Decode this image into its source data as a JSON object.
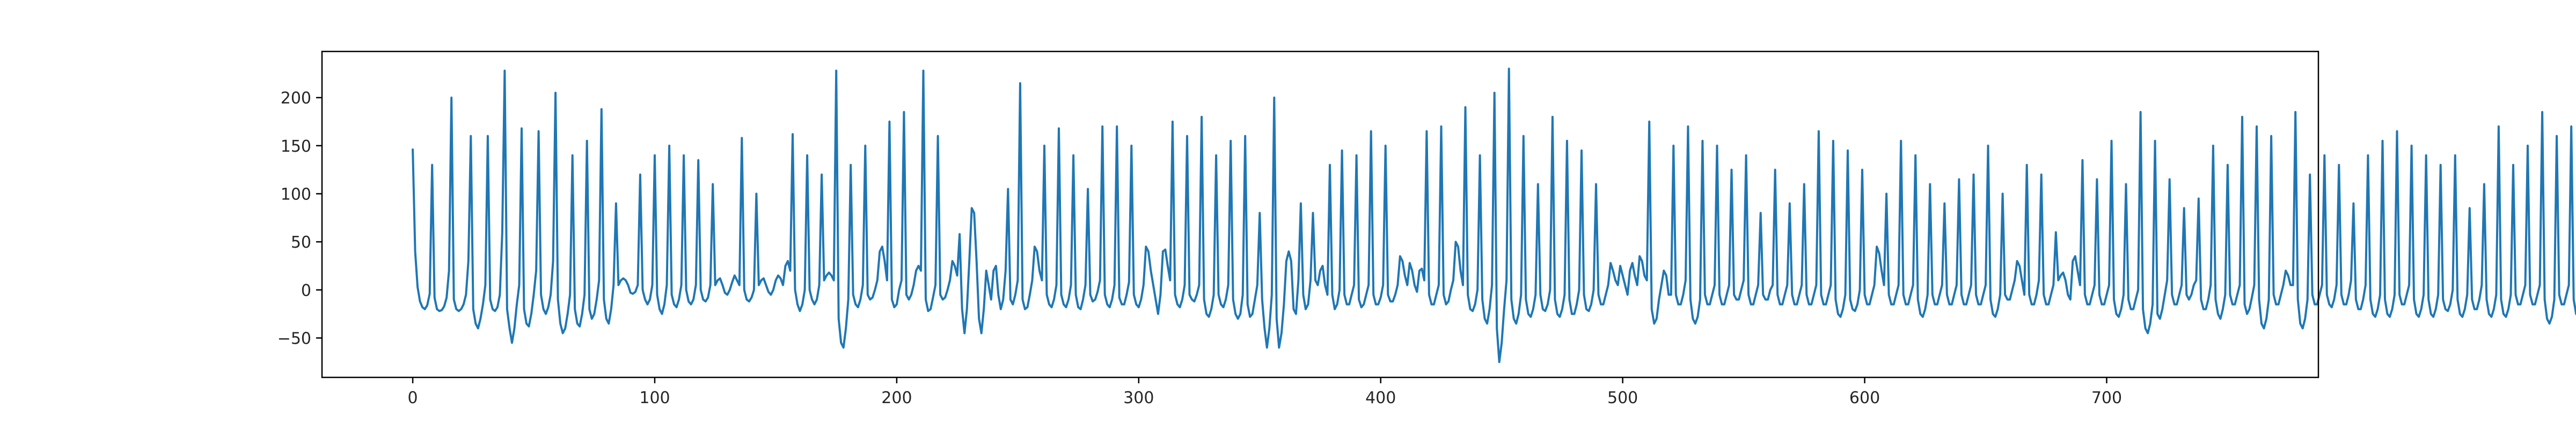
{
  "chart_data": {
    "type": "line",
    "title": "",
    "xlabel": "",
    "ylabel": "",
    "xlim": [
      -37.5,
      787.5
    ],
    "ylim": [
      -91,
      248
    ],
    "xticks": [
      0,
      100,
      200,
      300,
      400,
      500,
      600,
      700
    ],
    "yticks": [
      -50,
      0,
      50,
      100,
      150,
      200
    ],
    "grid": false,
    "legend": "none",
    "series": [
      {
        "color": "#1f77b4",
        "x_start": 0,
        "x_step": 1,
        "values": [
          146,
          40,
          3,
          -12,
          -18,
          -20,
          -16,
          -4,
          130,
          -8,
          -20,
          -22,
          -21,
          -17,
          -8,
          20,
          200,
          -10,
          -20,
          -22,
          -20,
          -15,
          -5,
          30,
          160,
          -20,
          -35,
          -40,
          -30,
          -15,
          5,
          160,
          -10,
          -20,
          -22,
          -18,
          -5,
          60,
          228,
          -20,
          -40,
          -55,
          -40,
          -15,
          5,
          168,
          -20,
          -35,
          -38,
          -25,
          -5,
          20,
          165,
          -5,
          -20,
          -25,
          -18,
          -5,
          30,
          205,
          -10,
          -35,
          -45,
          -40,
          -25,
          -5,
          140,
          -20,
          -35,
          -38,
          -25,
          -5,
          155,
          -20,
          -30,
          -25,
          -10,
          10,
          188,
          -10,
          -30,
          -35,
          -20,
          5,
          90,
          5,
          10,
          12,
          10,
          5,
          -3,
          -4,
          -2,
          5,
          120,
          0,
          -10,
          -15,
          -10,
          5,
          140,
          -5,
          -20,
          -25,
          -15,
          5,
          150,
          -5,
          -15,
          -18,
          -10,
          5,
          140,
          0,
          -12,
          -15,
          -10,
          5,
          135,
          0,
          -10,
          -12,
          -8,
          5,
          110,
          5,
          10,
          12,
          5,
          -3,
          -5,
          0,
          8,
          15,
          10,
          5,
          158,
          0,
          -10,
          -12,
          -8,
          0,
          100,
          5,
          10,
          12,
          5,
          -2,
          -5,
          0,
          10,
          15,
          12,
          5,
          25,
          30,
          20,
          162,
          0,
          -15,
          -22,
          -15,
          0,
          140,
          0,
          -10,
          -15,
          -10,
          5,
          120,
          10,
          15,
          18,
          15,
          10,
          228,
          -30,
          -55,
          -60,
          -40,
          -10,
          130,
          -5,
          -15,
          -18,
          -10,
          5,
          150,
          -5,
          -10,
          -8,
          0,
          10,
          40,
          45,
          30,
          10,
          175,
          -10,
          -18,
          -15,
          0,
          10,
          185,
          -5,
          -10,
          -5,
          5,
          20,
          25,
          20,
          228,
          -10,
          -22,
          -20,
          -8,
          5,
          160,
          -5,
          -10,
          -8,
          0,
          10,
          30,
          25,
          15,
          58,
          -20,
          -45,
          -20,
          30,
          85,
          80,
          30,
          -30,
          -45,
          -20,
          20,
          5,
          -10,
          20,
          25,
          -5,
          -20,
          -10,
          20,
          105,
          -10,
          -15,
          -5,
          10,
          215,
          -10,
          -20,
          -18,
          -5,
          10,
          45,
          40,
          20,
          10,
          150,
          -5,
          -15,
          -18,
          -10,
          5,
          168,
          -5,
          -15,
          -18,
          -10,
          5,
          140,
          -5,
          -18,
          -20,
          -10,
          5,
          105,
          -5,
          -12,
          -10,
          -2,
          10,
          170,
          -5,
          -15,
          -18,
          -10,
          5,
          170,
          -8,
          -15,
          -15,
          -5,
          8,
          150,
          -5,
          -15,
          -18,
          -10,
          5,
          45,
          40,
          20,
          5,
          -10,
          -25,
          -5,
          40,
          42,
          25,
          10,
          175,
          -5,
          -15,
          -18,
          -10,
          5,
          160,
          -5,
          -10,
          -12,
          -5,
          5,
          180,
          -10,
          -25,
          -28,
          -20,
          -5,
          140,
          -5,
          -15,
          -18,
          -10,
          5,
          155,
          -10,
          -25,
          -30,
          -25,
          -5,
          160,
          -15,
          -28,
          -25,
          -10,
          5,
          80,
          -10,
          -40,
          -60,
          -40,
          -5,
          200,
          -30,
          -60,
          -45,
          -15,
          30,
          40,
          30,
          -20,
          -25,
          10,
          90,
          -5,
          -20,
          -15,
          10,
          80,
          10,
          5,
          20,
          25,
          5,
          -5,
          130,
          -5,
          -20,
          -15,
          0,
          145,
          -5,
          -15,
          -15,
          -5,
          5,
          140,
          -10,
          -18,
          -15,
          -5,
          5,
          165,
          -5,
          -15,
          -15,
          -8,
          5,
          150,
          -5,
          -12,
          -12,
          -5,
          5,
          35,
          30,
          15,
          5,
          28,
          20,
          5,
          -2,
          20,
          22,
          10,
          165,
          -5,
          -15,
          -15,
          -5,
          5,
          170,
          -5,
          -15,
          -12,
          0,
          10,
          50,
          45,
          20,
          5,
          190,
          -5,
          -20,
          -22,
          -15,
          0,
          140,
          -10,
          -30,
          -35,
          -20,
          5,
          205,
          -40,
          -75,
          -55,
          -20,
          10,
          230,
          -10,
          -30,
          -35,
          -25,
          -5,
          160,
          -10,
          -25,
          -28,
          -20,
          -5,
          110,
          -5,
          -20,
          -22,
          -15,
          0,
          180,
          -10,
          -25,
          -28,
          -20,
          -5,
          155,
          -10,
          -25,
          -25,
          -15,
          0,
          145,
          -5,
          -20,
          -22,
          -15,
          0,
          110,
          -5,
          -15,
          -15,
          -5,
          5,
          28,
          20,
          10,
          5,
          25,
          15,
          5,
          -5,
          20,
          28,
          15,
          5,
          35,
          30,
          15,
          10,
          175,
          -20,
          -35,
          -30,
          -10,
          5,
          20,
          15,
          -5,
          -5,
          150,
          -5,
          -15,
          -15,
          -5,
          10,
          170,
          -10,
          -30,
          -35,
          -28,
          -10,
          155,
          -5,
          -15,
          -15,
          -5,
          5,
          150,
          -5,
          -15,
          -15,
          -5,
          5,
          125,
          -5,
          -10,
          -10,
          0,
          10,
          140,
          -5,
          -15,
          -15,
          -5,
          5,
          80,
          -5,
          -10,
          -10,
          0,
          5,
          125,
          -5,
          -15,
          -15,
          -5,
          5,
          90,
          -5,
          -15,
          -15,
          -5,
          5,
          110,
          -5,
          -15,
          -15,
          -5,
          5,
          165,
          -5,
          -15,
          -15,
          -5,
          5,
          155,
          -10,
          -25,
          -28,
          -20,
          -5,
          145,
          -10,
          -20,
          -22,
          -15,
          0,
          125,
          -5,
          -15,
          -15,
          -5,
          5,
          45,
          38,
          20,
          5,
          100,
          -5,
          -15,
          -15,
          -5,
          5,
          155,
          -5,
          -15,
          -15,
          -5,
          5,
          140,
          -10,
          -25,
          -28,
          -20,
          -5,
          110,
          -5,
          -15,
          -15,
          -5,
          5,
          90,
          -5,
          -15,
          -15,
          -5,
          5,
          115,
          -5,
          -15,
          -15,
          -5,
          5,
          120,
          -5,
          -15,
          -15,
          -5,
          5,
          150,
          -10,
          -25,
          -28,
          -20,
          -5,
          100,
          -5,
          -10,
          -10,
          0,
          10,
          30,
          25,
          10,
          -5,
          130,
          -5,
          -15,
          -15,
          -5,
          10,
          120,
          -5,
          -15,
          -15,
          -5,
          5,
          60,
          10,
          15,
          18,
          10,
          -5,
          -10,
          30,
          35,
          20,
          5,
          135,
          -5,
          -15,
          -15,
          -5,
          5,
          115,
          -5,
          -15,
          -15,
          -5,
          5,
          155,
          -10,
          -25,
          -28,
          -20,
          -5,
          110,
          -10,
          -20,
          -20,
          -10,
          0,
          185,
          -20,
          -40,
          -45,
          -35,
          -15,
          155,
          -25,
          -30,
          -20,
          -5,
          10,
          115,
          -5,
          -15,
          -15,
          -5,
          5,
          85,
          -5,
          -10,
          -5,
          5,
          10,
          95,
          -10,
          -20,
          -20,
          -10,
          5,
          150,
          -10,
          -25,
          -30,
          -20,
          -5,
          130,
          -5,
          -15,
          -15,
          -5,
          5,
          180,
          -15,
          -25,
          -20,
          -8,
          5,
          170,
          -10,
          -35,
          -40,
          -30,
          -10,
          160,
          -5,
          -15,
          -15,
          -5,
          5,
          20,
          15,
          5,
          5,
          185,
          -10,
          -35,
          -40,
          -30,
          -10,
          120,
          -5,
          -15,
          -15,
          -5,
          5,
          140,
          -5,
          -15,
          -18,
          -10,
          5,
          130,
          -5,
          -15,
          -15,
          -5,
          10,
          90,
          -10,
          -20,
          -20,
          -10,
          5,
          140,
          -10,
          -25,
          -28,
          -20,
          -5,
          155,
          -10,
          -25,
          -28,
          -20,
          -5,
          165,
          -5,
          -15,
          -15,
          -5,
          5,
          150,
          -10,
          -25,
          -28,
          -20,
          -5,
          140,
          -10,
          -25,
          -28,
          -20,
          -5,
          130,
          -10,
          -20,
          -22,
          -15,
          0,
          140,
          -10,
          -25,
          -28,
          -20,
          -5,
          85,
          -10,
          -20,
          -20,
          -10,
          5,
          110,
          -10,
          -25,
          -28,
          -20,
          -5,
          170,
          -10,
          -25,
          -28,
          -20,
          -5,
          130,
          -5,
          -15,
          -15,
          -5,
          5,
          150,
          -5,
          -15,
          -15,
          -5,
          5,
          185,
          -10,
          -30,
          -35,
          -28,
          -10,
          160,
          -5,
          -15,
          -15,
          -5,
          5,
          170,
          -10,
          -25,
          -28,
          -20,
          -5,
          185,
          -5,
          -10,
          -5
        ]
      }
    ]
  }
}
